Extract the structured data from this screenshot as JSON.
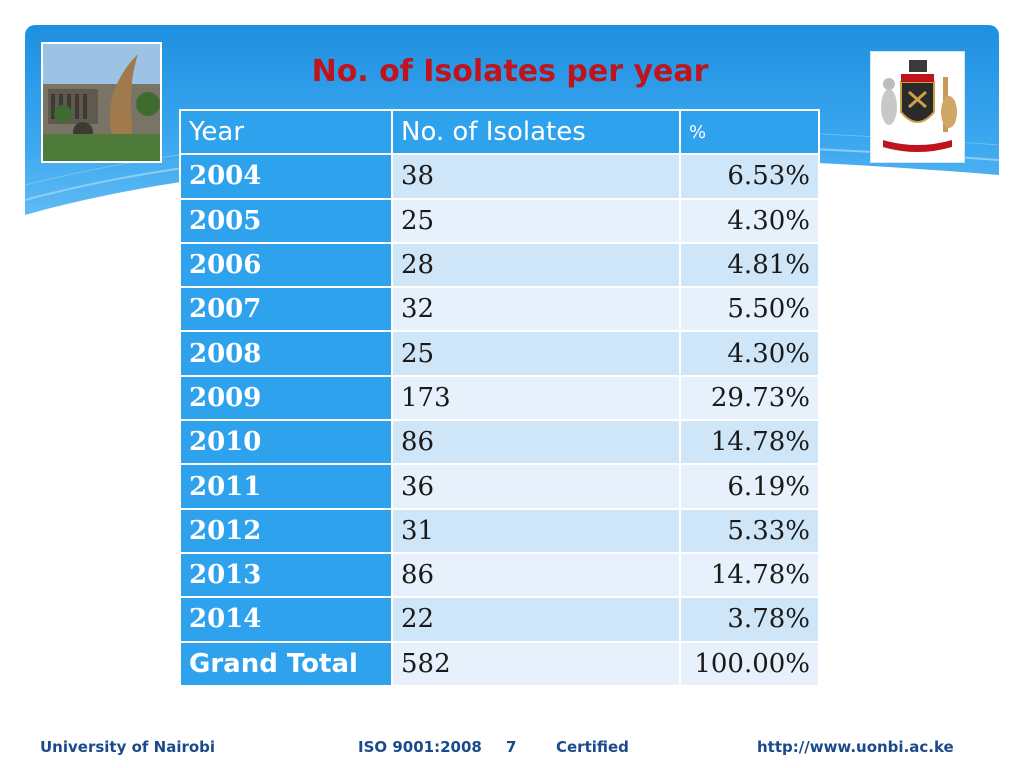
{
  "title": "No. of Isolates per year",
  "table": {
    "headers": [
      "Year",
      "No. of Isolates",
      "%"
    ],
    "rows": [
      {
        "year": "2004",
        "count": "38",
        "percent": "6.53%"
      },
      {
        "year": "2005",
        "count": "25",
        "percent": "4.30%"
      },
      {
        "year": "2006",
        "count": "28",
        "percent": "4.81%"
      },
      {
        "year": "2007",
        "count": "32",
        "percent": "5.50%"
      },
      {
        "year": "2008",
        "count": "25",
        "percent": "4.30%"
      },
      {
        "year": "2009",
        "count": "173",
        "percent": "29.73%"
      },
      {
        "year": "2010",
        "count": "86",
        "percent": "14.78%"
      },
      {
        "year": "2011",
        "count": "36",
        "percent": "6.19%"
      },
      {
        "year": "2012",
        "count": "31",
        "percent": "5.33%"
      },
      {
        "year": "2013",
        "count": "86",
        "percent": "14.78%"
      },
      {
        "year": "2014",
        "count": "22",
        "percent": "3.78%"
      }
    ],
    "total": {
      "year": "Grand Total",
      "count": "582",
      "percent": "100.00%"
    }
  },
  "footer": {
    "university": "University of Nairobi",
    "iso": "ISO 9001:2008",
    "page_number": "7",
    "certified": "Certified",
    "url": "http://www.uonbi.ac.ke"
  },
  "colors": {
    "title": "#c0141c",
    "header_band": "#1f8fe0",
    "year_column": "#2fa2ee",
    "row_odd": "#cfe5f8",
    "row_even": "#e6f1fb",
    "footer_text": "#1b4a8c"
  },
  "images": {
    "left": "campus-photo",
    "right": "university-coat-of-arms"
  }
}
